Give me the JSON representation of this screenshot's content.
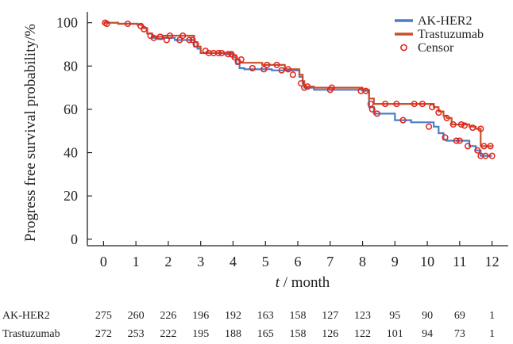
{
  "chart_data": {
    "type": "line",
    "subtype": "kaplan-meier",
    "title": "",
    "xlabel_italic": "t",
    "xlabel_unit": "/ month",
    "ylabel": "Progress free survival probability/%",
    "xlim": [
      -0.5,
      12.5
    ],
    "ylim": [
      -3,
      105
    ],
    "x_ticks": [
      "0",
      "1",
      "2",
      "3",
      "4",
      "5",
      "6",
      "7",
      "8",
      "9",
      "10",
      "11",
      "12"
    ],
    "y_ticks": [
      "0",
      "20",
      "40",
      "60",
      "80",
      "100"
    ],
    "legend_position": "top-right",
    "legend": {
      "entries": [
        {
          "label": "AK-HER2",
          "kind": "line",
          "color": "#4a7cc9"
        },
        {
          "label": "Trastuzumab",
          "kind": "line",
          "color": "#c8502d"
        },
        {
          "label": "Censor",
          "kind": "marker",
          "color": "#e2231a"
        }
      ]
    },
    "series": [
      {
        "name": "AK-HER2",
        "color": "#4a7cc9",
        "x": [
          0,
          0.45,
          1.05,
          1.2,
          1.35,
          1.5,
          1.65,
          1.85,
          2.2,
          2.6,
          2.8,
          2.9,
          3.0,
          3.5,
          3.75,
          4.0,
          4.1,
          4.2,
          4.35,
          5.2,
          5.6,
          6.05,
          6.15,
          6.2,
          6.5,
          8.0,
          8.2,
          8.35,
          9.0,
          9.15,
          9.5,
          10.2,
          10.35,
          10.5,
          10.6,
          10.75,
          11.1,
          11.3,
          11.5,
          11.65,
          12.0
        ],
        "y": [
          100,
          99.5,
          99,
          97.5,
          95,
          93,
          92.5,
          93,
          92,
          92,
          89,
          88,
          86,
          86,
          85.5,
          84,
          81,
          79,
          78.5,
          78,
          78,
          75,
          72,
          70,
          69,
          68.5,
          61,
          58,
          55,
          55,
          54,
          52,
          49,
          46,
          45.5,
          45.5,
          45.5,
          43,
          41,
          38.5,
          38.5
        ]
      },
      {
        "name": "Trastuzumab",
        "color": "#c8502d",
        "x": [
          0,
          0.45,
          1.05,
          1.2,
          1.35,
          1.5,
          1.65,
          1.85,
          2.2,
          2.6,
          2.8,
          2.9,
          3.0,
          3.5,
          3.75,
          4.0,
          4.1,
          4.2,
          4.35,
          4.9,
          5.2,
          5.6,
          6.05,
          6.15,
          6.2,
          6.5,
          8.0,
          8.2,
          8.35,
          8.9,
          9.5,
          10.2,
          10.35,
          10.5,
          10.6,
          10.75,
          11.1,
          11.3,
          11.5,
          11.65,
          12.0
        ],
        "y": [
          100,
          99.5,
          99,
          97.5,
          95,
          93.5,
          93.5,
          94,
          94,
          94,
          91,
          89,
          86,
          86,
          86,
          85,
          83,
          81.5,
          81.5,
          80.5,
          80.5,
          78.5,
          76,
          73,
          70.5,
          70,
          69,
          65,
          62.5,
          62.5,
          62.5,
          61,
          59,
          57,
          56,
          53,
          53,
          52,
          51,
          43,
          43
        ]
      }
    ],
    "censor_marks": {
      "AK-HER2": {
        "x": [
          0.05,
          0.75,
          1.25,
          1.95,
          2.35,
          2.75,
          3.25,
          3.55,
          3.85,
          4.05,
          4.15,
          4.6,
          4.95,
          5.5,
          5.85,
          6.1,
          6.2,
          7.0,
          7.95,
          8.3,
          8.45,
          9.25,
          10.05,
          10.55,
          10.9,
          11.0,
          11.25,
          11.55,
          11.65,
          11.8,
          12.0
        ],
        "y": [
          100,
          99.5,
          97,
          92,
          92,
          92,
          86,
          86,
          85.5,
          84,
          82,
          79,
          78.5,
          78,
          76,
          72,
          70,
          69,
          68.5,
          60,
          58,
          55,
          52,
          47,
          45.5,
          45.5,
          43,
          41,
          38.5,
          38.5,
          38.5
        ]
      },
      "Trastuzumab": {
        "x": [
          0.1,
          1.15,
          1.45,
          1.55,
          1.75,
          2.05,
          2.45,
          2.65,
          2.85,
          3.15,
          3.4,
          3.65,
          3.95,
          4.25,
          5.05,
          5.35,
          5.7,
          6.3,
          7.05,
          8.1,
          8.25,
          8.7,
          9.05,
          9.6,
          9.85,
          10.15,
          10.35,
          10.6,
          10.8,
          11.05,
          11.15,
          11.4,
          11.65,
          11.75,
          11.95
        ],
        "y": [
          99.5,
          98.5,
          94,
          93,
          93.5,
          94,
          94,
          92,
          90,
          87,
          86,
          86,
          85.5,
          83,
          80.5,
          80.5,
          78.5,
          70.5,
          70,
          68.5,
          62.5,
          62.5,
          62.5,
          62.5,
          62.5,
          61,
          58.5,
          56,
          53,
          53,
          52.5,
          51.5,
          51,
          43,
          43
        ]
      }
    },
    "risk_table": {
      "times": [
        0,
        1,
        2,
        3,
        4,
        5,
        6,
        7,
        8,
        9,
        10,
        11,
        12
      ],
      "rows": [
        {
          "label": "AK-HER2",
          "values": [
            "275",
            "260",
            "226",
            "196",
            "192",
            "163",
            "158",
            "127",
            "123",
            "95",
            "90",
            "69",
            "1"
          ]
        },
        {
          "label": "Trastuzumab",
          "values": [
            "272",
            "253",
            "222",
            "195",
            "188",
            "165",
            "158",
            "126",
            "122",
            "101",
            "94",
            "73",
            "1"
          ]
        }
      ]
    }
  }
}
